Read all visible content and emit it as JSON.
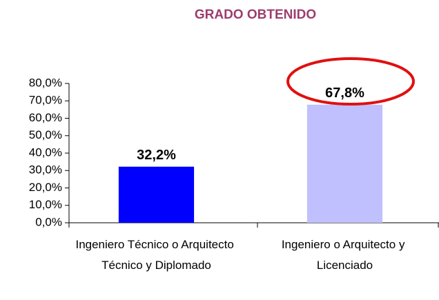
{
  "chart_data": {
    "type": "bar",
    "title": "GRADO OBTENIDO",
    "categories": [
      "Ingeniero Técnico o Arquitecto Técnico y Diplomado",
      "Ingeniero o Arquitecto y Licenciado"
    ],
    "values": [
      32.2,
      67.8
    ],
    "value_labels": [
      "32,2%",
      "67,8%"
    ],
    "colors": [
      "#0000ff",
      "#c0c0ff"
    ],
    "ylim": [
      0,
      80
    ],
    "yticks": [
      {
        "value": 0,
        "label": "0,0%"
      },
      {
        "value": 10,
        "label": "10,0%"
      },
      {
        "value": 20,
        "label": "20,0%"
      },
      {
        "value": 30,
        "label": "30,0%"
      },
      {
        "value": 40,
        "label": "40,0%"
      },
      {
        "value": 50,
        "label": "50,0%"
      },
      {
        "value": 60,
        "label": "60,0%"
      },
      {
        "value": 70,
        "label": "70,0%"
      },
      {
        "value": 80,
        "label": "80,0%"
      }
    ],
    "grid": false
  }
}
